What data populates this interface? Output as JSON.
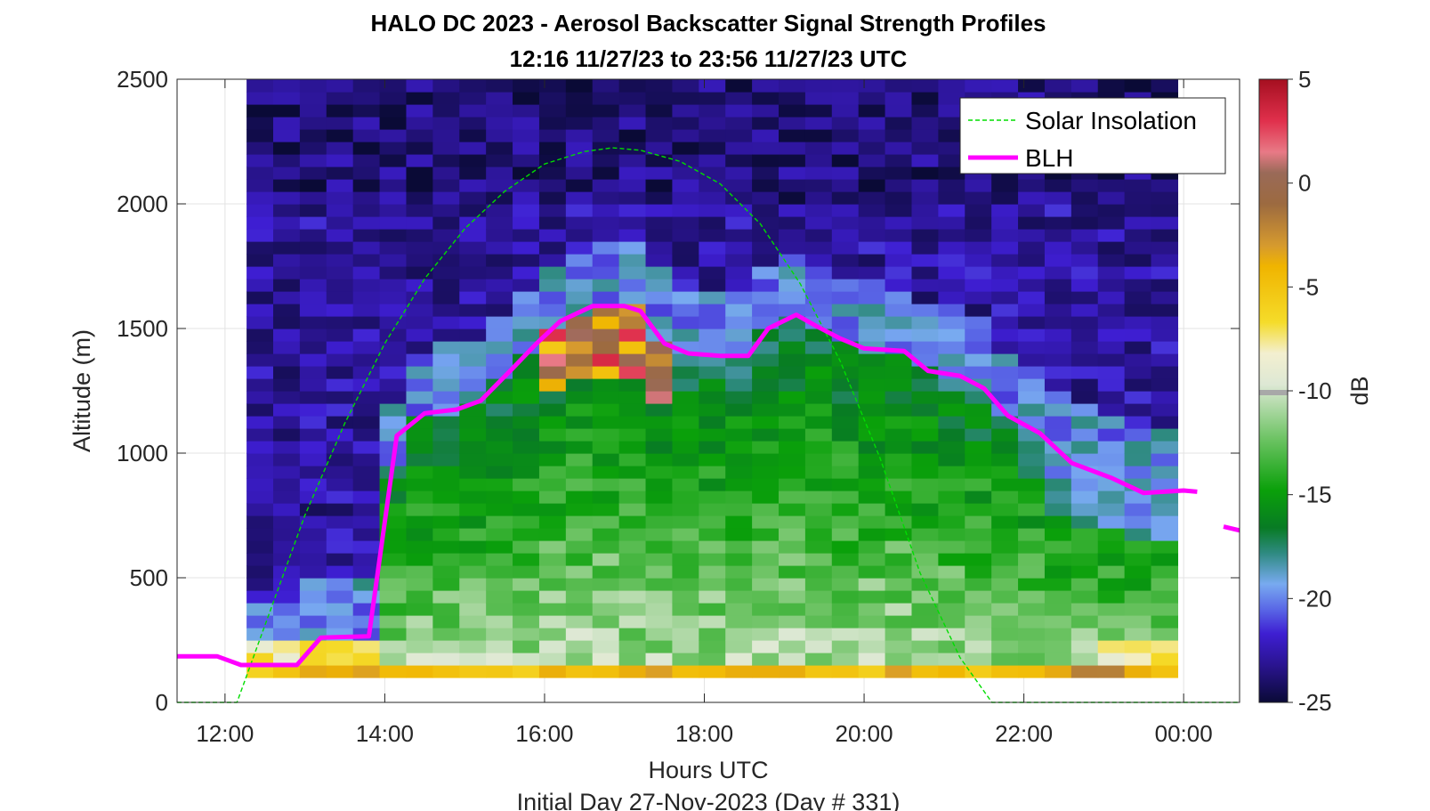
{
  "chart_data": {
    "type": "heatmap",
    "title": "HALO DC 2023 - Aerosol Backscatter Signal Strength Profiles",
    "subtitle": "12:16 11/27/23 to 23:56 11/27/23  UTC",
    "xlabel": "Hours UTC",
    "footer": "Initial Day 27-Nov-2023 (Day # 331)",
    "ylabel": "Altitude (m)",
    "colorbar_label": "dB",
    "x_unit": "hours UTC",
    "xlim": [
      11.4,
      24.7
    ],
    "ylim": [
      0,
      2500
    ],
    "x_ticks": [
      12,
      14,
      16,
      18,
      20,
      22,
      24
    ],
    "x_tick_labels": [
      "12:00",
      "14:00",
      "16:00",
      "18:00",
      "20:00",
      "22:00",
      "00:00"
    ],
    "y_ticks": [
      0,
      500,
      1000,
      1500,
      2000,
      2500
    ],
    "y_tick_labels": [
      "0",
      "500",
      "1000",
      "1500",
      "2000",
      "2500"
    ],
    "colorbar_ticks": [
      5,
      0,
      -5,
      -10,
      -15,
      -20,
      -25
    ],
    "colorbar_tick_labels": [
      "5",
      "0",
      "-5",
      "-10",
      "-15",
      "-20",
      "-25"
    ],
    "colorbar_range": [
      -25,
      5
    ],
    "grid": true,
    "legend_position": "top-right",
    "legend": [
      "Solar Insolation",
      "BLH"
    ],
    "heatmap": {
      "x_start": 12.27,
      "x_end": 23.93,
      "bin_hours": 0.333,
      "y_start": 100,
      "y_end": 2500,
      "bin_m": 50
    },
    "series": [
      {
        "name": "Solar Insolation",
        "color": "#00dd00",
        "style": "dashed",
        "x": [
          11.4,
          12.15,
          12.5,
          13.0,
          13.5,
          14.0,
          14.5,
          15.0,
          15.5,
          16.0,
          16.5,
          16.85,
          17.2,
          17.7,
          18.2,
          18.7,
          19.2,
          19.7,
          20.2,
          20.7,
          21.2,
          21.6,
          22.0,
          22.5,
          23.0,
          24.0,
          24.7
        ],
        "y": [
          0,
          0,
          310,
          750,
          1120,
          1440,
          1700,
          1900,
          2050,
          2160,
          2210,
          2225,
          2215,
          2170,
          2080,
          1920,
          1680,
          1370,
          980,
          520,
          180,
          0,
          0,
          0,
          0,
          0,
          0
        ]
      },
      {
        "name": "BLH",
        "color": "#ff00ff",
        "style": "solid",
        "x": [
          11.4,
          11.9,
          12.2,
          12.9,
          13.2,
          13.8,
          14.15,
          14.5,
          14.9,
          15.2,
          15.6,
          15.9,
          16.2,
          16.6,
          17.0,
          17.2,
          17.5,
          17.8,
          18.2,
          18.55,
          18.8,
          19.15,
          19.4,
          19.7,
          20.0,
          20.5,
          20.8,
          21.2,
          21.5,
          21.8,
          22.2,
          22.6,
          23.1,
          23.5,
          24.0,
          24.17
        ],
        "y": [
          185,
          185,
          150,
          150,
          260,
          265,
          1070,
          1160,
          1175,
          1210,
          1340,
          1440,
          1530,
          1590,
          1590,
          1570,
          1440,
          1400,
          1390,
          1390,
          1500,
          1555,
          1510,
          1460,
          1420,
          1410,
          1330,
          1310,
          1260,
          1150,
          1080,
          960,
          900,
          840,
          850,
          845
        ],
        "extra_segment": {
          "x": [
            24.5,
            24.7
          ],
          "y": [
            705,
            690
          ]
        }
      }
    ]
  }
}
